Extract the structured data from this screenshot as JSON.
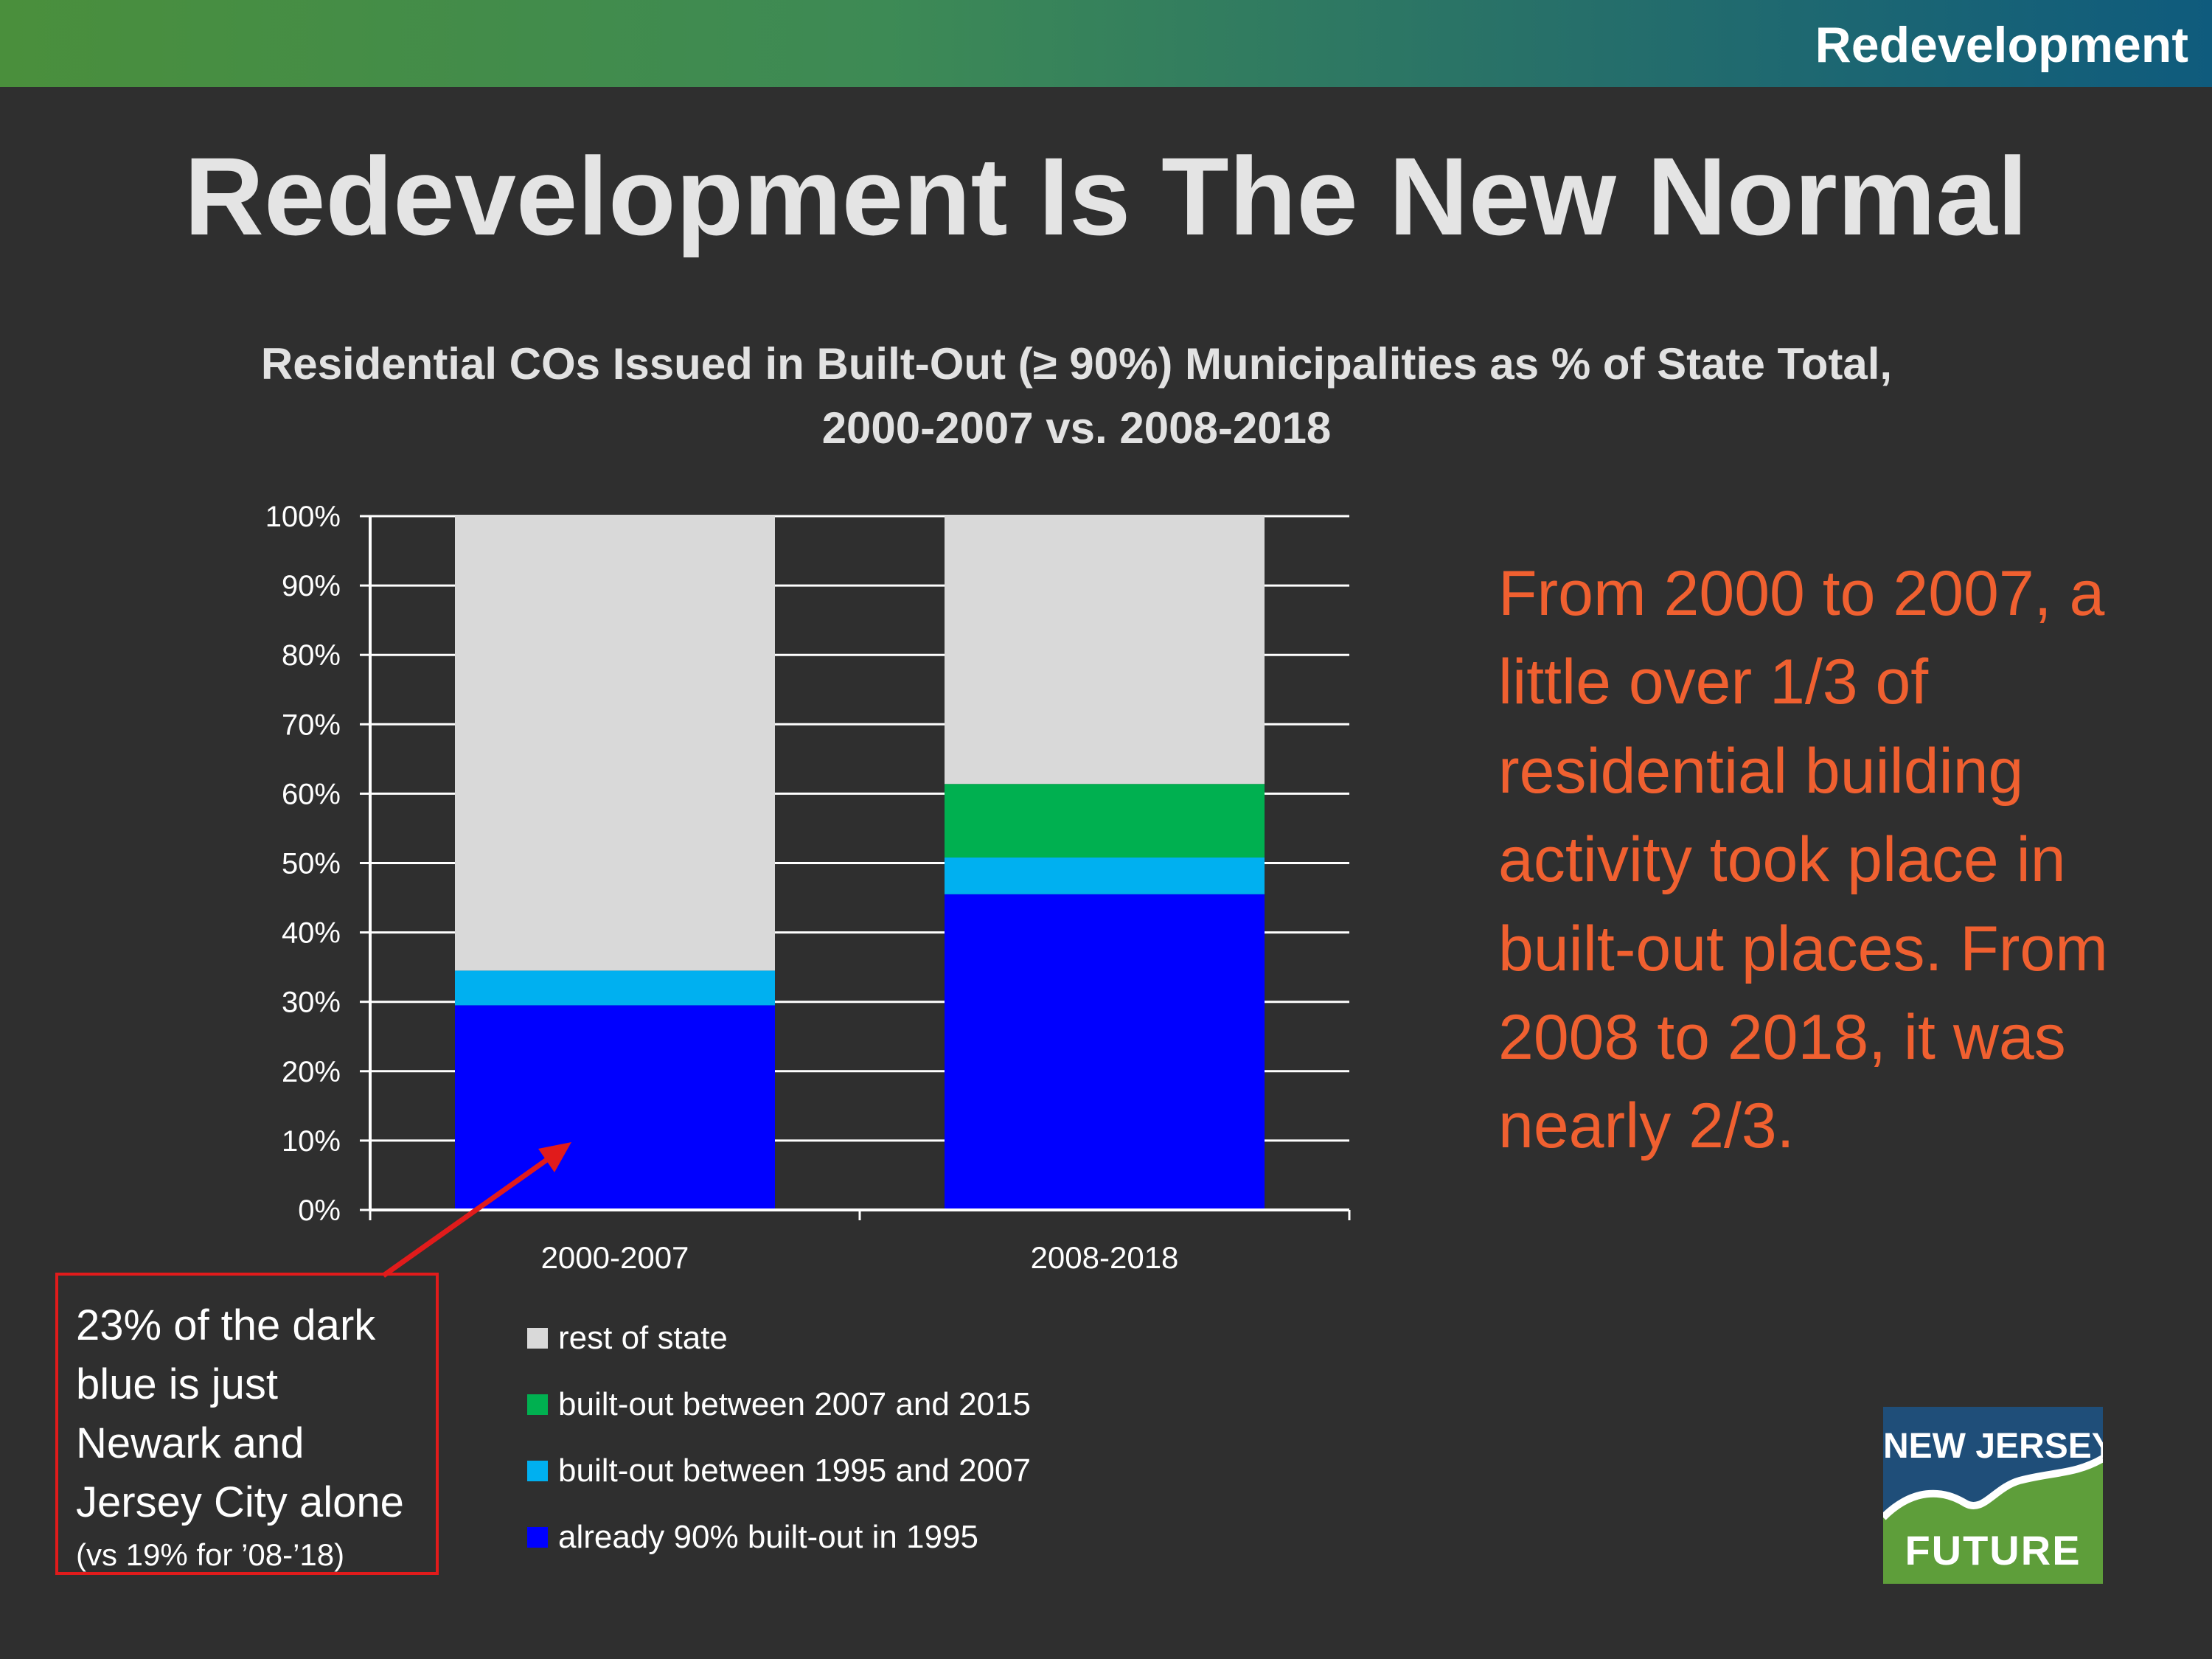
{
  "header": {
    "section_label": "Redevelopment"
  },
  "slide": {
    "title": "Redevelopment Is The New Normal"
  },
  "chart_data": {
    "type": "bar",
    "stacked": true,
    "title_line1": "Residential COs Issued in Built-Out (≥ 90%) Municipalities as % of State Total,",
    "title_line2": "2000-2007 vs. 2008-2018",
    "categories": [
      "2000-2007",
      "2008-2018"
    ],
    "series": [
      {
        "name": "already 90% built-out in 1995",
        "color": "#0000ff",
        "values": [
          29.5,
          45.5
        ]
      },
      {
        "name": "built-out between 1995 and 2007",
        "color": "#00b0f0",
        "values": [
          5.0,
          5.3
        ]
      },
      {
        "name": "built-out between 2007 and 2015",
        "color": "#00b050",
        "values": [
          0,
          10.6
        ]
      },
      {
        "name": "rest of state",
        "color": "#d9d9d9",
        "values": [
          65.5,
          38.6
        ]
      }
    ],
    "y_ticks": [
      "0%",
      "10%",
      "20%",
      "30%",
      "40%",
      "50%",
      "60%",
      "70%",
      "80%",
      "90%",
      "100%"
    ],
    "ylim": [
      0,
      100
    ],
    "y_unit": "%",
    "grid": true,
    "legend_position": "bottom",
    "legend_order": [
      "rest of state",
      "built-out between 2007 and 2015",
      "built-out between 1995 and 2007",
      "already 90% built-out in 1995"
    ]
  },
  "legend": [
    {
      "label": "rest of state",
      "color": "#d9d9d9"
    },
    {
      "label": "built-out between 2007 and 2015",
      "color": "#00b050"
    },
    {
      "label": "built-out between 1995 and 2007",
      "color": "#00b0f0"
    },
    {
      "label": "already 90% built-out in 1995",
      "color": "#0000ff"
    }
  ],
  "callout": {
    "text": "From 2000 to 2007, a little over 1/3 of residential building activity took place in built-out places.  From 2008 to 2018, it was nearly 2/3."
  },
  "note": {
    "main": "23% of the dark blue is just Newark and Jersey City alone",
    "sub": "(vs 19% for ’08-’18)",
    "border_color": "#e11b1b"
  },
  "logo": {
    "line1": "NEW JERSEY",
    "line2": "FUTURE"
  },
  "colors": {
    "background": "#2f2f2f",
    "callout_text": "#f06030",
    "arrow": "#e11b1b"
  }
}
